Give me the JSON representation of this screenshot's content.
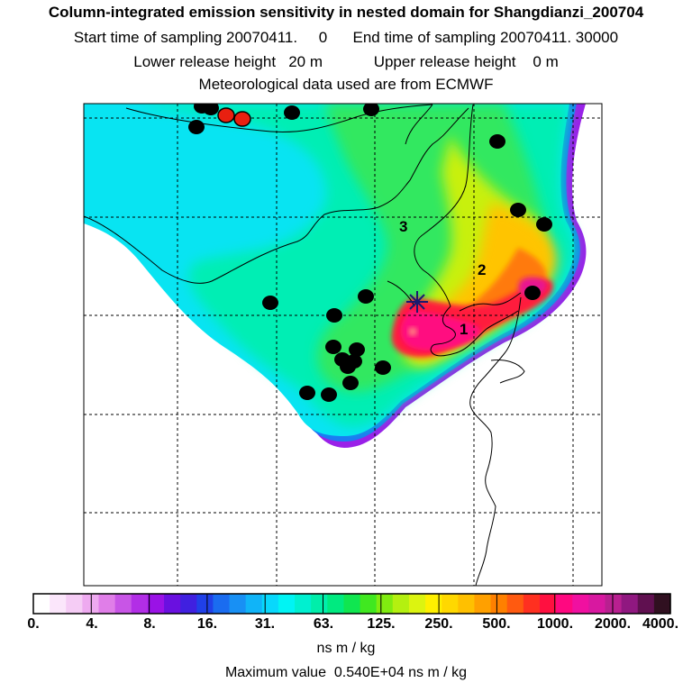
{
  "header": {
    "title": "Column-integrated emission sensitivity in nested domain for Shangdianzi_200704",
    "sampling": "Start time of sampling 20070411.     0      End time of sampling 20070411. 30000",
    "release": "Lower release height   20 m            Upper release height    0 m",
    "met": "Meteorological data used are from ECMWF"
  },
  "map": {
    "region_labels": [
      "1",
      "2",
      "3"
    ],
    "release_site": "Shangdianzi",
    "marker_colors": {
      "station": "#000000",
      "highlight": "#e82010",
      "release": "#1a1a6e"
    }
  },
  "colorbar": {
    "ticks": [
      "0.",
      "4.",
      "8.",
      "16.",
      "31.",
      "63.",
      "125.",
      "250.",
      "500.",
      "1000.",
      "2000.",
      "4000."
    ],
    "colors": [
      "#ffffff",
      "#fbe6fb",
      "#f5ccf5",
      "#eeaaf0",
      "#e07ee8",
      "#c855e6",
      "#b22ee6",
      "#9a12e6",
      "#6a10e0",
      "#4020e0",
      "#2040e8",
      "#1a6cf0",
      "#1890f4",
      "#10b4f8",
      "#08d8fc",
      "#00f4f4",
      "#00f0d0",
      "#00eeaa",
      "#00ea80",
      "#10e650",
      "#40e820",
      "#80ec10",
      "#b4f010",
      "#dcf410",
      "#fff000",
      "#ffd800",
      "#ffc000",
      "#ffa000",
      "#ff8000",
      "#ff5a10",
      "#ff3020",
      "#ff1040",
      "#ff0880",
      "#f010a0",
      "#d818a0",
      "#b82090",
      "#901880",
      "#601050",
      "#301020"
    ],
    "units": "ns m / kg"
  },
  "max_value": "Maximum value  0.540E+04 ns m / kg"
}
